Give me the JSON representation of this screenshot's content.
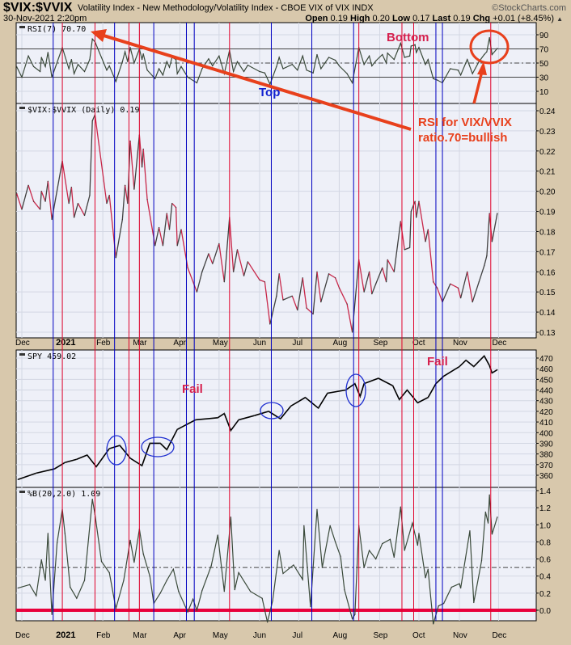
{
  "header": {
    "symbol": "$VIX:$VVIX",
    "description": "Volatility Index - New Methodology/Volatility Index - CBOE VIX of VIX  INDX",
    "watermark": "©StockCharts.com",
    "datetime": "30-Nov-2021 2:20pm",
    "quote": {
      "open_label": "Open",
      "open": "0.19",
      "high_label": "High",
      "high": "0.20",
      "low_label": "Low",
      "low": "0.17",
      "last_label": "Last",
      "last": "0.19",
      "chg_label": "Chg",
      "chg": "+0.01 (+8.45%)",
      "chg_icon": "up-triangle-icon"
    }
  },
  "colors": {
    "background": "#d8c8ac",
    "plot": "#eef0f8",
    "grid": "#d3d7e3",
    "up": "#404040",
    "down": "#c8284a",
    "blue_line": "#0000c0",
    "red_line": "#e0002a",
    "annotation": "#e8401c",
    "zero_line": "#e8003c"
  },
  "chart_data": [
    {
      "type": "line",
      "panel": "rsi",
      "legend": "RSI(7) 70.70",
      "ylim": [
        0,
        100
      ],
      "yticks": [
        10,
        30,
        50,
        70,
        90
      ],
      "reference_lines": [
        30,
        50,
        70
      ],
      "dates": [
        "2020-11-27",
        "2020-12-01",
        "2020-12-06",
        "2020-12-10",
        "2020-12-15",
        "2020-12-16",
        "2020-12-19",
        "2020-12-21",
        "2020-12-24",
        "2021-01-01",
        "2021-01-06",
        "2021-01-08",
        "2021-01-10",
        "2021-01-13",
        "2021-01-18",
        "2021-01-22",
        "2021-01-24",
        "2021-01-26",
        "2021-02-04",
        "2021-02-06",
        "2021-02-11",
        "2021-02-16",
        "2021-02-18",
        "2021-02-20",
        "2021-02-22",
        "2021-02-25",
        "2021-03-01",
        "2021-03-03",
        "2021-03-04",
        "2021-03-07",
        "2021-03-13",
        "2021-03-16",
        "2021-03-19",
        "2021-03-22",
        "2021-03-24",
        "2021-03-26",
        "2021-03-29",
        "2021-03-30",
        "2021-04-02",
        "2021-04-07",
        "2021-04-14",
        "2021-04-18",
        "2021-04-23",
        "2021-04-26",
        "2021-05-01",
        "2021-05-05",
        "2021-05-09",
        "2021-05-12",
        "2021-05-15",
        "2021-05-20",
        "2021-05-23",
        "2021-06-01",
        "2021-06-05",
        "2021-06-09",
        "2021-06-14",
        "2021-06-16",
        "2021-06-19",
        "2021-06-26",
        "2021-06-30",
        "2021-07-04",
        "2021-07-07",
        "2021-07-12",
        "2021-07-15",
        "2021-07-18",
        "2021-07-24",
        "2021-07-29",
        "2021-08-01",
        "2021-08-07",
        "2021-08-11",
        "2021-08-16",
        "2021-08-20",
        "2021-08-24",
        "2021-08-26",
        "2021-08-29",
        "2021-09-03",
        "2021-09-06",
        "2021-09-07",
        "2021-09-12",
        "2021-09-17",
        "2021-09-20",
        "2021-09-24",
        "2021-09-25",
        "2021-09-28",
        "2021-09-29",
        "2021-10-01",
        "2021-10-06",
        "2021-10-08",
        "2021-10-12",
        "2021-10-15",
        "2021-10-19",
        "2021-10-25",
        "2021-10-31",
        "2021-11-02",
        "2021-11-07",
        "2021-11-11",
        "2021-11-16",
        "2021-11-20",
        "2021-11-22",
        "2021-11-24",
        "2021-11-26",
        "2021-11-30"
      ],
      "values": [
        45,
        30,
        60,
        45,
        38,
        58,
        45,
        65,
        30,
        72,
        42,
        55,
        35,
        48,
        38,
        55,
        84,
        80,
        40,
        46,
        24,
        52,
        66,
        52,
        72,
        50,
        70,
        55,
        63,
        40,
        28,
        42,
        33,
        52,
        44,
        58,
        55,
        35,
        45,
        30,
        22,
        42,
        56,
        46,
        60,
        35,
        68,
        38,
        52,
        38,
        47,
        38,
        36,
        20,
        45,
        58,
        42,
        48,
        40,
        60,
        40,
        36,
        62,
        42,
        58,
        54,
        46,
        35,
        22,
        72,
        48,
        60,
        46,
        53,
        62,
        50,
        64,
        55,
        78,
        58,
        60,
        74,
        76,
        65,
        72,
        48,
        55,
        28,
        26,
        22,
        42,
        40,
        33,
        55,
        35,
        52,
        62,
        66,
        86,
        62,
        70.7
      ]
    },
    {
      "type": "line",
      "panel": "ratio",
      "legend": "$VIX:$VVIX (Daily) 0.19",
      "ylim": [
        0.13,
        0.24
      ],
      "yticks": [
        0.13,
        0.14,
        0.15,
        0.16,
        0.17,
        0.18,
        0.19,
        0.2,
        0.21,
        0.22,
        0.23,
        0.24
      ],
      "values": [
        0.199,
        0.191,
        0.203,
        0.195,
        0.191,
        0.2,
        0.195,
        0.205,
        0.186,
        0.215,
        0.194,
        0.202,
        0.187,
        0.194,
        0.188,
        0.198,
        0.235,
        0.238,
        0.194,
        0.198,
        0.167,
        0.186,
        0.203,
        0.194,
        0.225,
        0.201,
        0.228,
        0.212,
        0.221,
        0.196,
        0.173,
        0.182,
        0.173,
        0.189,
        0.181,
        0.194,
        0.192,
        0.173,
        0.181,
        0.162,
        0.15,
        0.16,
        0.169,
        0.164,
        0.174,
        0.155,
        0.187,
        0.16,
        0.171,
        0.158,
        0.165,
        0.156,
        0.155,
        0.134,
        0.148,
        0.159,
        0.146,
        0.148,
        0.141,
        0.157,
        0.142,
        0.139,
        0.16,
        0.145,
        0.159,
        0.157,
        0.152,
        0.144,
        0.13,
        0.166,
        0.15,
        0.16,
        0.149,
        0.154,
        0.162,
        0.155,
        0.166,
        0.16,
        0.185,
        0.171,
        0.172,
        0.19,
        0.195,
        0.187,
        0.195,
        0.175,
        0.181,
        0.155,
        0.152,
        0.145,
        0.154,
        0.152,
        0.147,
        0.16,
        0.145,
        0.155,
        0.163,
        0.168,
        0.189,
        0.175,
        0.189
      ]
    },
    {
      "type": "line",
      "panel": "spy",
      "legend": "SPY 459.02",
      "ylim": [
        355,
        475
      ],
      "yticks": [
        360,
        370,
        380,
        390,
        400,
        410,
        420,
        430,
        440,
        450,
        460,
        470
      ],
      "dates": [
        "2020-11-28",
        "2020-12-12",
        "2020-12-26",
        "2021-01-03",
        "2021-01-12",
        "2021-01-20",
        "2021-01-27",
        "2021-02-06",
        "2021-02-14",
        "2021-02-22",
        "2021-03-03",
        "2021-03-09",
        "2021-03-17",
        "2021-03-22",
        "2021-03-30",
        "2021-04-13",
        "2021-04-30",
        "2021-05-05",
        "2021-05-10",
        "2021-05-16",
        "2021-05-28",
        "2021-06-08",
        "2021-06-17",
        "2021-06-25",
        "2021-07-06",
        "2021-07-16",
        "2021-07-23",
        "2021-08-06",
        "2021-08-13",
        "2021-08-17",
        "2021-08-20",
        "2021-08-31",
        "2021-09-11",
        "2021-09-16",
        "2021-09-22",
        "2021-09-30",
        "2021-10-08",
        "2021-10-14",
        "2021-10-20",
        "2021-11-01",
        "2021-11-06",
        "2021-11-12",
        "2021-11-20",
        "2021-11-24",
        "2021-11-26",
        "2021-11-30"
      ],
      "values": [
        356,
        362,
        366,
        372,
        375,
        379,
        368,
        385,
        388,
        376,
        369,
        390,
        390,
        384,
        403,
        412,
        414,
        418,
        402,
        412,
        416,
        420,
        413,
        425,
        433,
        423,
        437,
        440,
        446,
        434,
        446,
        451,
        444,
        431,
        440,
        428,
        433,
        446,
        453,
        462,
        468,
        462,
        472,
        463,
        456,
        459.02
      ]
    },
    {
      "type": "line",
      "panel": "percent_b",
      "legend": "%B(20,2.0) 1.09",
      "ylim": [
        -0.2,
        1.4
      ],
      "yticks": [
        0.0,
        0.2,
        0.4,
        0.6,
        0.8,
        1.0,
        1.2,
        1.4
      ],
      "reference_lines": [
        0.0,
        0.5
      ],
      "dates": [
        "2020-11-28",
        "2020-12-07",
        "2020-12-12",
        "2020-12-16",
        "2020-12-19",
        "2020-12-21",
        "2020-12-24",
        "2020-12-28",
        "2021-01-01",
        "2021-01-03",
        "2021-01-07",
        "2021-01-12",
        "2021-01-18",
        "2021-01-24",
        "2021-01-26",
        "2021-01-31",
        "2021-02-06",
        "2021-02-11",
        "2021-02-17",
        "2021-02-22",
        "2021-02-25",
        "2021-03-01",
        "2021-03-04",
        "2021-03-09",
        "2021-03-12",
        "2021-03-17",
        "2021-03-22",
        "2021-03-27",
        "2021-03-31",
        "2021-04-07",
        "2021-04-11",
        "2021-04-14",
        "2021-04-18",
        "2021-04-25",
        "2021-04-30",
        "2021-05-05",
        "2021-05-10",
        "2021-05-13",
        "2021-05-16",
        "2021-05-25",
        "2021-06-03",
        "2021-06-07",
        "2021-06-11",
        "2021-06-16",
        "2021-06-19",
        "2021-06-27",
        "2021-07-04",
        "2021-07-05",
        "2021-07-10",
        "2021-07-15",
        "2021-07-19",
        "2021-07-25",
        "2021-07-29",
        "2021-08-02",
        "2021-08-05",
        "2021-08-11",
        "2021-08-13",
        "2021-08-16",
        "2021-08-20",
        "2021-08-24",
        "2021-08-29",
        "2021-09-03",
        "2021-09-09",
        "2021-09-12",
        "2021-09-17",
        "2021-09-20",
        "2021-09-26",
        "2021-09-30",
        "2021-10-01",
        "2021-10-06",
        "2021-10-08",
        "2021-10-12",
        "2021-10-16",
        "2021-10-20",
        "2021-10-26",
        "2021-11-01",
        "2021-11-02",
        "2021-11-09",
        "2021-11-12",
        "2021-11-18",
        "2021-11-21",
        "2021-11-23",
        "2021-11-24",
        "2021-11-26",
        "2021-11-30"
      ],
      "values": [
        0.26,
        0.3,
        0.17,
        0.59,
        0.35,
        0.9,
        -0.05,
        0.79,
        1.18,
        0.9,
        0.27,
        0.14,
        0.35,
        1.3,
        1.12,
        0.57,
        0.44,
        0.02,
        0.35,
        0.82,
        0.56,
        0.95,
        0.66,
        0.4,
        0.08,
        0.2,
        0.35,
        0.48,
        0.22,
        -0.02,
        0.13,
        0.0,
        0.23,
        0.52,
        0.88,
        0.22,
        1.09,
        0.24,
        0.44,
        0.22,
        0.14,
        -0.14,
        0.11,
        0.7,
        0.43,
        0.53,
        0.36,
        0.99,
        0.04,
        1.18,
        0.5,
        0.99,
        0.8,
        0.63,
        0.24,
        -0.1,
        -0.05,
        0.99,
        0.5,
        0.7,
        0.6,
        0.78,
        0.83,
        0.62,
        1.21,
        0.7,
        1.02,
        0.76,
        0.9,
        0.38,
        0.48,
        -0.16,
        0.05,
        0.08,
        0.27,
        0.31,
        0.26,
        0.93,
        0.09,
        0.58,
        1.15,
        1.02,
        1.35,
        0.89,
        1.09
      ]
    }
  ],
  "x_axis": {
    "month_labels": [
      {
        "label": "Dec",
        "date": "2020-12-01"
      },
      {
        "label": "2021",
        "date": "2021-01-01",
        "bold": true
      },
      {
        "label": "Feb",
        "date": "2021-02-01"
      },
      {
        "label": "Mar",
        "date": "2021-03-01"
      },
      {
        "label": "Apr",
        "date": "2021-04-01"
      },
      {
        "label": "May",
        "date": "2021-05-01"
      },
      {
        "label": "Jun",
        "date": "2021-06-01"
      },
      {
        "label": "Jul",
        "date": "2021-07-01"
      },
      {
        "label": "Aug",
        "date": "2021-08-01"
      },
      {
        "label": "Sep",
        "date": "2021-09-01"
      },
      {
        "label": "Oct",
        "date": "2021-10-01"
      },
      {
        "label": "Nov",
        "date": "2021-11-01"
      },
      {
        "label": "Dec",
        "date": "2021-12-01"
      }
    ]
  },
  "vertical_markers": {
    "blue": [
      "2020-12-25",
      "2021-02-10",
      "2021-03-12",
      "2021-04-06",
      "2021-04-12",
      "2021-06-10",
      "2021-07-11",
      "2021-08-12",
      "2021-10-14",
      "2021-10-19"
    ],
    "red": [
      "2021-01-01",
      "2021-01-26",
      "2021-02-21",
      "2021-03-01",
      "2021-05-09",
      "2021-08-16",
      "2021-09-18",
      "2021-09-27",
      "2021-11-25"
    ]
  },
  "annotations": {
    "bottom": "Bottom",
    "top": "Top",
    "rsi_note_line1": "RSI for VIX/VVIX",
    "rsi_note_line2": "ratio.70=bullish",
    "fail_1": "Fail",
    "fail_2": "Fail"
  }
}
